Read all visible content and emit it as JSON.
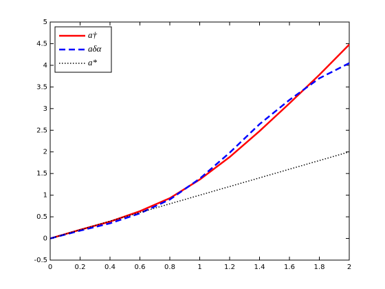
{
  "chart_data": {
    "type": "line",
    "x": [
      0,
      0.2,
      0.4,
      0.6,
      0.8,
      1,
      1.2,
      1.4,
      1.6,
      1.8,
      2
    ],
    "series": [
      {
        "name": "a†",
        "color": "#ff0000",
        "style": "solid",
        "values": [
          0,
          0.2,
          0.39,
          0.63,
          0.93,
          1.36,
          1.88,
          2.48,
          3.12,
          3.78,
          4.48
        ]
      },
      {
        "name": "aδα",
        "color": "#0000ff",
        "style": "dashed",
        "values": [
          0,
          0.18,
          0.35,
          0.58,
          0.9,
          1.38,
          1.98,
          2.64,
          3.2,
          3.7,
          4.05
        ]
      },
      {
        "name": "a*",
        "color": "#000000",
        "style": "dotted",
        "values": [
          0,
          0.2,
          0.4,
          0.6,
          0.8,
          1,
          1.2,
          1.4,
          1.6,
          1.8,
          2
        ]
      }
    ],
    "xlim": [
      0,
      2
    ],
    "ylim": [
      -0.5,
      5
    ],
    "xticks": [
      0,
      0.2,
      0.4,
      0.6,
      0.8,
      1,
      1.2,
      1.4,
      1.6,
      1.8,
      2
    ],
    "yticks": [
      -0.5,
      0,
      0.5,
      1,
      1.5,
      2,
      2.5,
      3,
      3.5,
      4,
      4.5,
      5
    ],
    "grid": false,
    "legend": "top-left"
  }
}
